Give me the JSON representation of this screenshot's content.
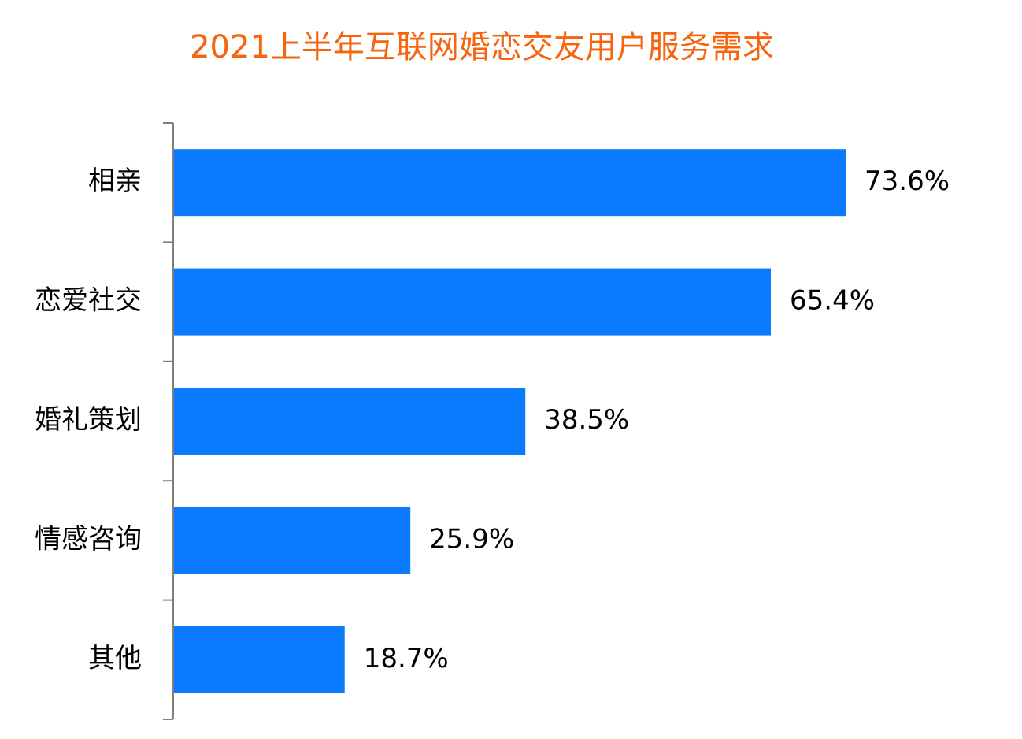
{
  "chart_data": {
    "type": "bar",
    "orientation": "horizontal",
    "title": "2021上半年互联网婚恋交友用户服务需求",
    "categories": [
      "相亲",
      "恋爱社交",
      "婚礼策划",
      "情感咨询",
      "其他"
    ],
    "values": [
      73.6,
      65.4,
      38.5,
      25.9,
      18.7
    ],
    "value_labels": [
      "73.6%",
      "65.4%",
      "38.5%",
      "25.9%",
      "18.7%"
    ],
    "color": "#0a7bff",
    "title_color": "#f5650f"
  }
}
